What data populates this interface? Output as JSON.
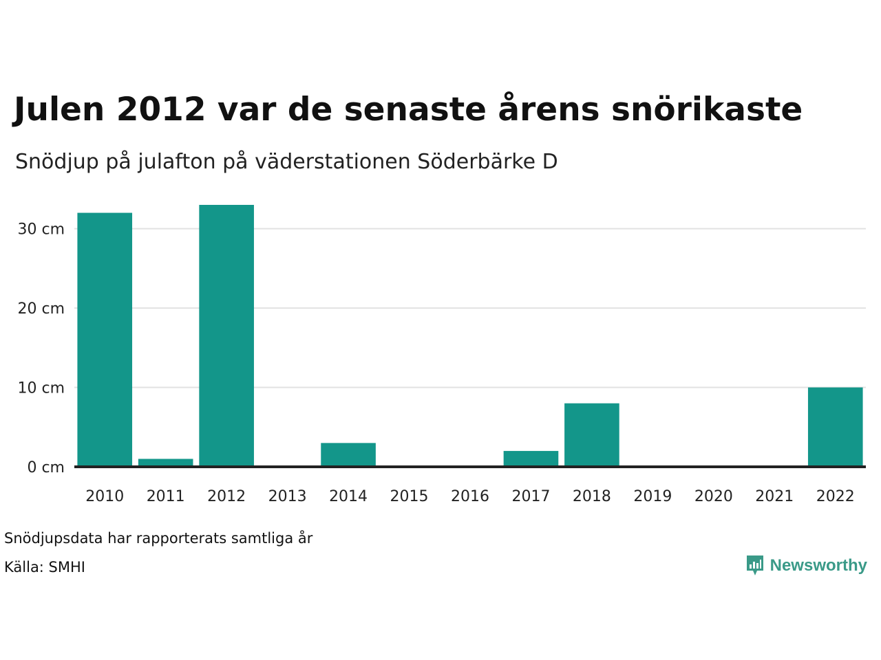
{
  "title": "Julen 2012 var de senaste årens snörikaste",
  "subtitle": "Snödjup på julafton på väderstationen Söderbärke D",
  "footnote": "Snödjupsdata har rapporterats samtliga år",
  "source": "Källa: SMHI",
  "brand": {
    "name": "Newsworthy",
    "icon": "newsworthy-chart-bubble-icon"
  },
  "colors": {
    "bar": "#13968a",
    "gridline": "#e2e2e2",
    "baseline": "#222222",
    "brand": "#3a9a88"
  },
  "chart_data": {
    "type": "bar",
    "title": "Julen 2012 var de senaste årens snörikaste",
    "subtitle": "Snödjup på julafton på väderstationen Söderbärke D",
    "categories": [
      "2010",
      "2011",
      "2012",
      "2013",
      "2014",
      "2015",
      "2016",
      "2017",
      "2018",
      "2019",
      "2020",
      "2021",
      "2022"
    ],
    "values": [
      32,
      1,
      33,
      0,
      3,
      0,
      0,
      2,
      8,
      0,
      0,
      0,
      10
    ],
    "unit": "cm",
    "ylim": [
      0,
      33
    ],
    "yticks": [
      0,
      10,
      20,
      30
    ],
    "ytick_labels": [
      "0 cm",
      "10 cm",
      "20 cm",
      "30 cm"
    ],
    "grid": true,
    "legend": "none"
  }
}
